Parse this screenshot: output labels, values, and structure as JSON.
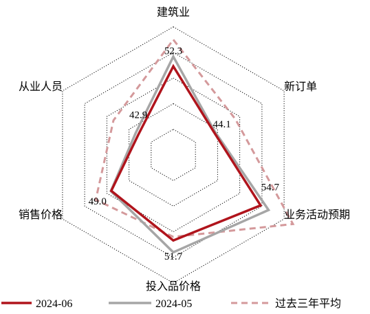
{
  "chart_data": {
    "type": "radar",
    "axes": [
      "建筑业",
      "新订单",
      "业务活动预期",
      "投入品价格",
      "销售价格",
      "从业人员"
    ],
    "range": [
      35,
      60
    ],
    "rings": 5,
    "series": [
      {
        "name": "2024-06",
        "values": [
          52.3,
          44.1,
          54.7,
          51.7,
          49.0,
          42.9
        ],
        "color": "#b0141c",
        "style": "solid"
      },
      {
        "name": "2024-05",
        "values": [
          54.2,
          44.3,
          56.5,
          54.0,
          49.1,
          43.5
        ],
        "color": "#a6a6a6",
        "style": "solid"
      },
      {
        "name": "过去三年平均",
        "values": [
          57.5,
          49.0,
          62.0,
          51.0,
          52.5,
          48.5
        ],
        "color": "#d4999b",
        "style": "dashed"
      }
    ],
    "data_labels": [
      {
        "axis": 0,
        "text": "52.3"
      },
      {
        "axis": 1,
        "text": "44.1"
      },
      {
        "axis": 2,
        "text": "54.7"
      },
      {
        "axis": 3,
        "text": "51.7"
      },
      {
        "axis": 4,
        "text": "49.0"
      },
      {
        "axis": 5,
        "text": "42.9"
      }
    ],
    "legend_position": "bottom"
  }
}
